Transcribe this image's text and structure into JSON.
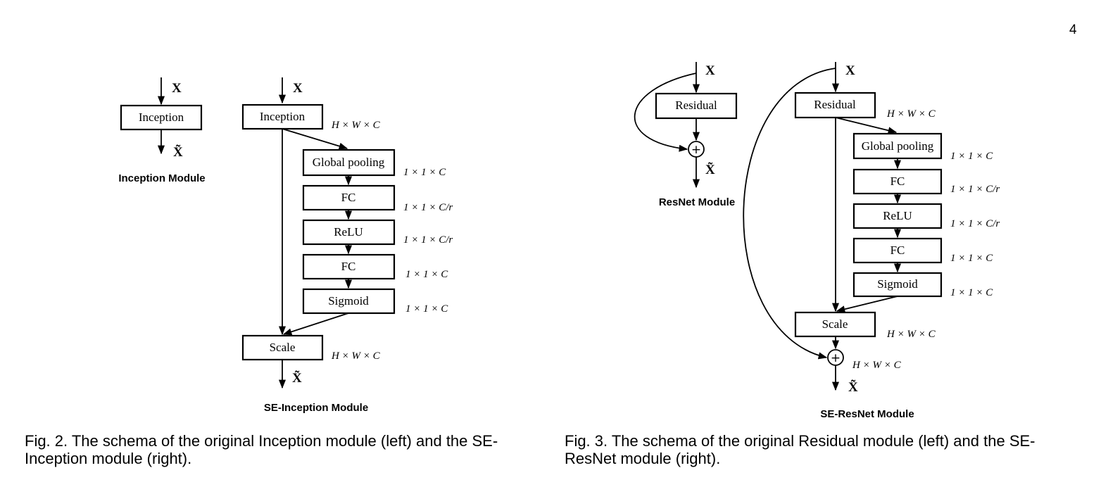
{
  "page_number": "4",
  "fig2": {
    "inception_module": {
      "input": "X",
      "block": "Inception",
      "output": "X̃",
      "title": "Inception Module"
    },
    "se_inception_module": {
      "input": "X",
      "blocks": [
        "Inception",
        "Global pooling",
        "FC",
        "ReLU",
        "FC",
        "Sigmoid",
        "Scale"
      ],
      "dims": [
        "H × W × C",
        "1 × 1 × C",
        "1 × 1 × C/r",
        "1 × 1 × C/r",
        "1 × 1 × C",
        "1 × 1 × C",
        "H × W × C"
      ],
      "output": "X̃",
      "title": "SE-Inception Module"
    },
    "caption": "Fig. 2. The schema of the original Inception module (left) and the SE-Inception module (right)."
  },
  "fig3": {
    "resnet_module": {
      "input": "X",
      "block": "Residual",
      "sum": "+",
      "output": "X̃",
      "title": "ResNet Module"
    },
    "se_resnet_module": {
      "input": "X",
      "blocks": [
        "Residual",
        "Global pooling",
        "FC",
        "ReLU",
        "FC",
        "Sigmoid",
        "Scale"
      ],
      "dims": [
        "H × W × C",
        "1 × 1 × C",
        "1 × 1 × C/r",
        "1 × 1 × C/r",
        "1 × 1 × C",
        "1 × 1 × C",
        "H × W × C",
        "H × W × C"
      ],
      "sum": "+",
      "output": "X̃",
      "title": "SE-ResNet Module"
    },
    "caption": "Fig. 3. The schema of the original Residual module (left) and the SE-ResNet module (right)."
  }
}
